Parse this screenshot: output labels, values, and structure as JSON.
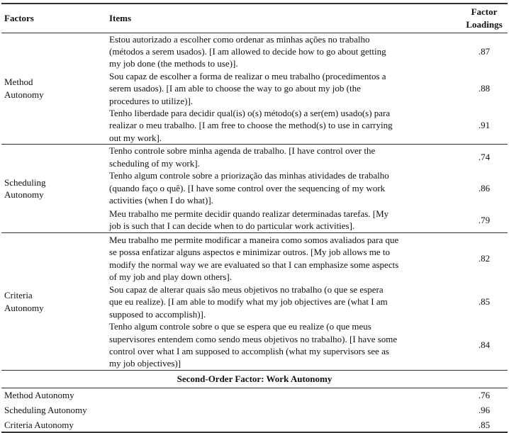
{
  "header": {
    "factors": "Factors",
    "items": "Items",
    "loadings_line1": "Factor",
    "loadings_line2": "Loadings"
  },
  "groups": [
    {
      "factor": [
        "Method",
        "Autonomy"
      ],
      "items": [
        {
          "lines": [
            "Estou autorizado a escolher como ordenar as minhas ações no trabalho",
            "(métodos a serem usados). [I am allowed to decide how to go about getting",
            "my job done (the methods to use)]."
          ],
          "loading": ".87"
        },
        {
          "lines": [
            "Sou capaz de escolher a forma de realizar o meu trabalho (procedimentos a",
            "serem usados). [I am able to choose the way to go about my job (the",
            "procedures to utilize)]."
          ],
          "loading": ".88"
        },
        {
          "lines": [
            "Tenho liberdade para decidir qual(is) o(s) método(s) a ser(em) usado(s) para",
            "realizar o meu trabalho. [I am free to choose the method(s) to use in carrying",
            "out my work]."
          ],
          "loading": ".91"
        }
      ]
    },
    {
      "factor": [
        "Scheduling",
        "Autonomy"
      ],
      "items": [
        {
          "lines": [
            "Tenho controle sobre minha agenda de trabalho. [I have control over the",
            "scheduling of my work]."
          ],
          "loading": ".74"
        },
        {
          "lines": [
            "Tenho algum controle sobre a priorização das minhas atividades de trabalho",
            "(quando faço o quê). [I have some control over the sequencing of my work",
            "activities (when I do what)]."
          ],
          "loading": ".86"
        },
        {
          "lines": [
            "Meu trabalho me permite decidir quando realizar determinadas tarefas. [My",
            "job is such that I can decide when to do particular work activities]."
          ],
          "loading": ".79"
        }
      ]
    },
    {
      "factor": [
        "Criteria",
        "Autonomy"
      ],
      "items": [
        {
          "lines": [
            "Meu trabalho me permite modificar a maneira como somos avaliados para que",
            "se possa enfatizar alguns aspectos e minimizar outros. [My job allows me to",
            "modify the normal way we are evaluated so that I can emphasize some aspects",
            "of my job and play down others]."
          ],
          "loading": ".82"
        },
        {
          "lines": [
            "Sou capaz de alterar quais são meus objetivos no trabalho (o que se espera",
            "que eu realize). [I am able to modify what my job objectives are (what I am",
            "supposed to accomplish)]."
          ],
          "loading": ".85"
        },
        {
          "lines": [
            "Tenho algum controle sobre o que se espera que eu realize (o que meus",
            "supervisores entendem como sendo meus objetivos no trabalho). [I have some",
            "control over what I am supposed to accomplish (what my supervisors see as",
            "my job objectives)]"
          ],
          "loading": ".84"
        }
      ]
    }
  ],
  "second_order": {
    "title": "Second-Order Factor: Work Autonomy",
    "rows": [
      {
        "factor": "Method Autonomy",
        "loading": ".76"
      },
      {
        "factor": "Scheduling Autonomy",
        "loading": ".96"
      },
      {
        "factor": "Criteria Autonomy",
        "loading": ".85"
      }
    ]
  }
}
